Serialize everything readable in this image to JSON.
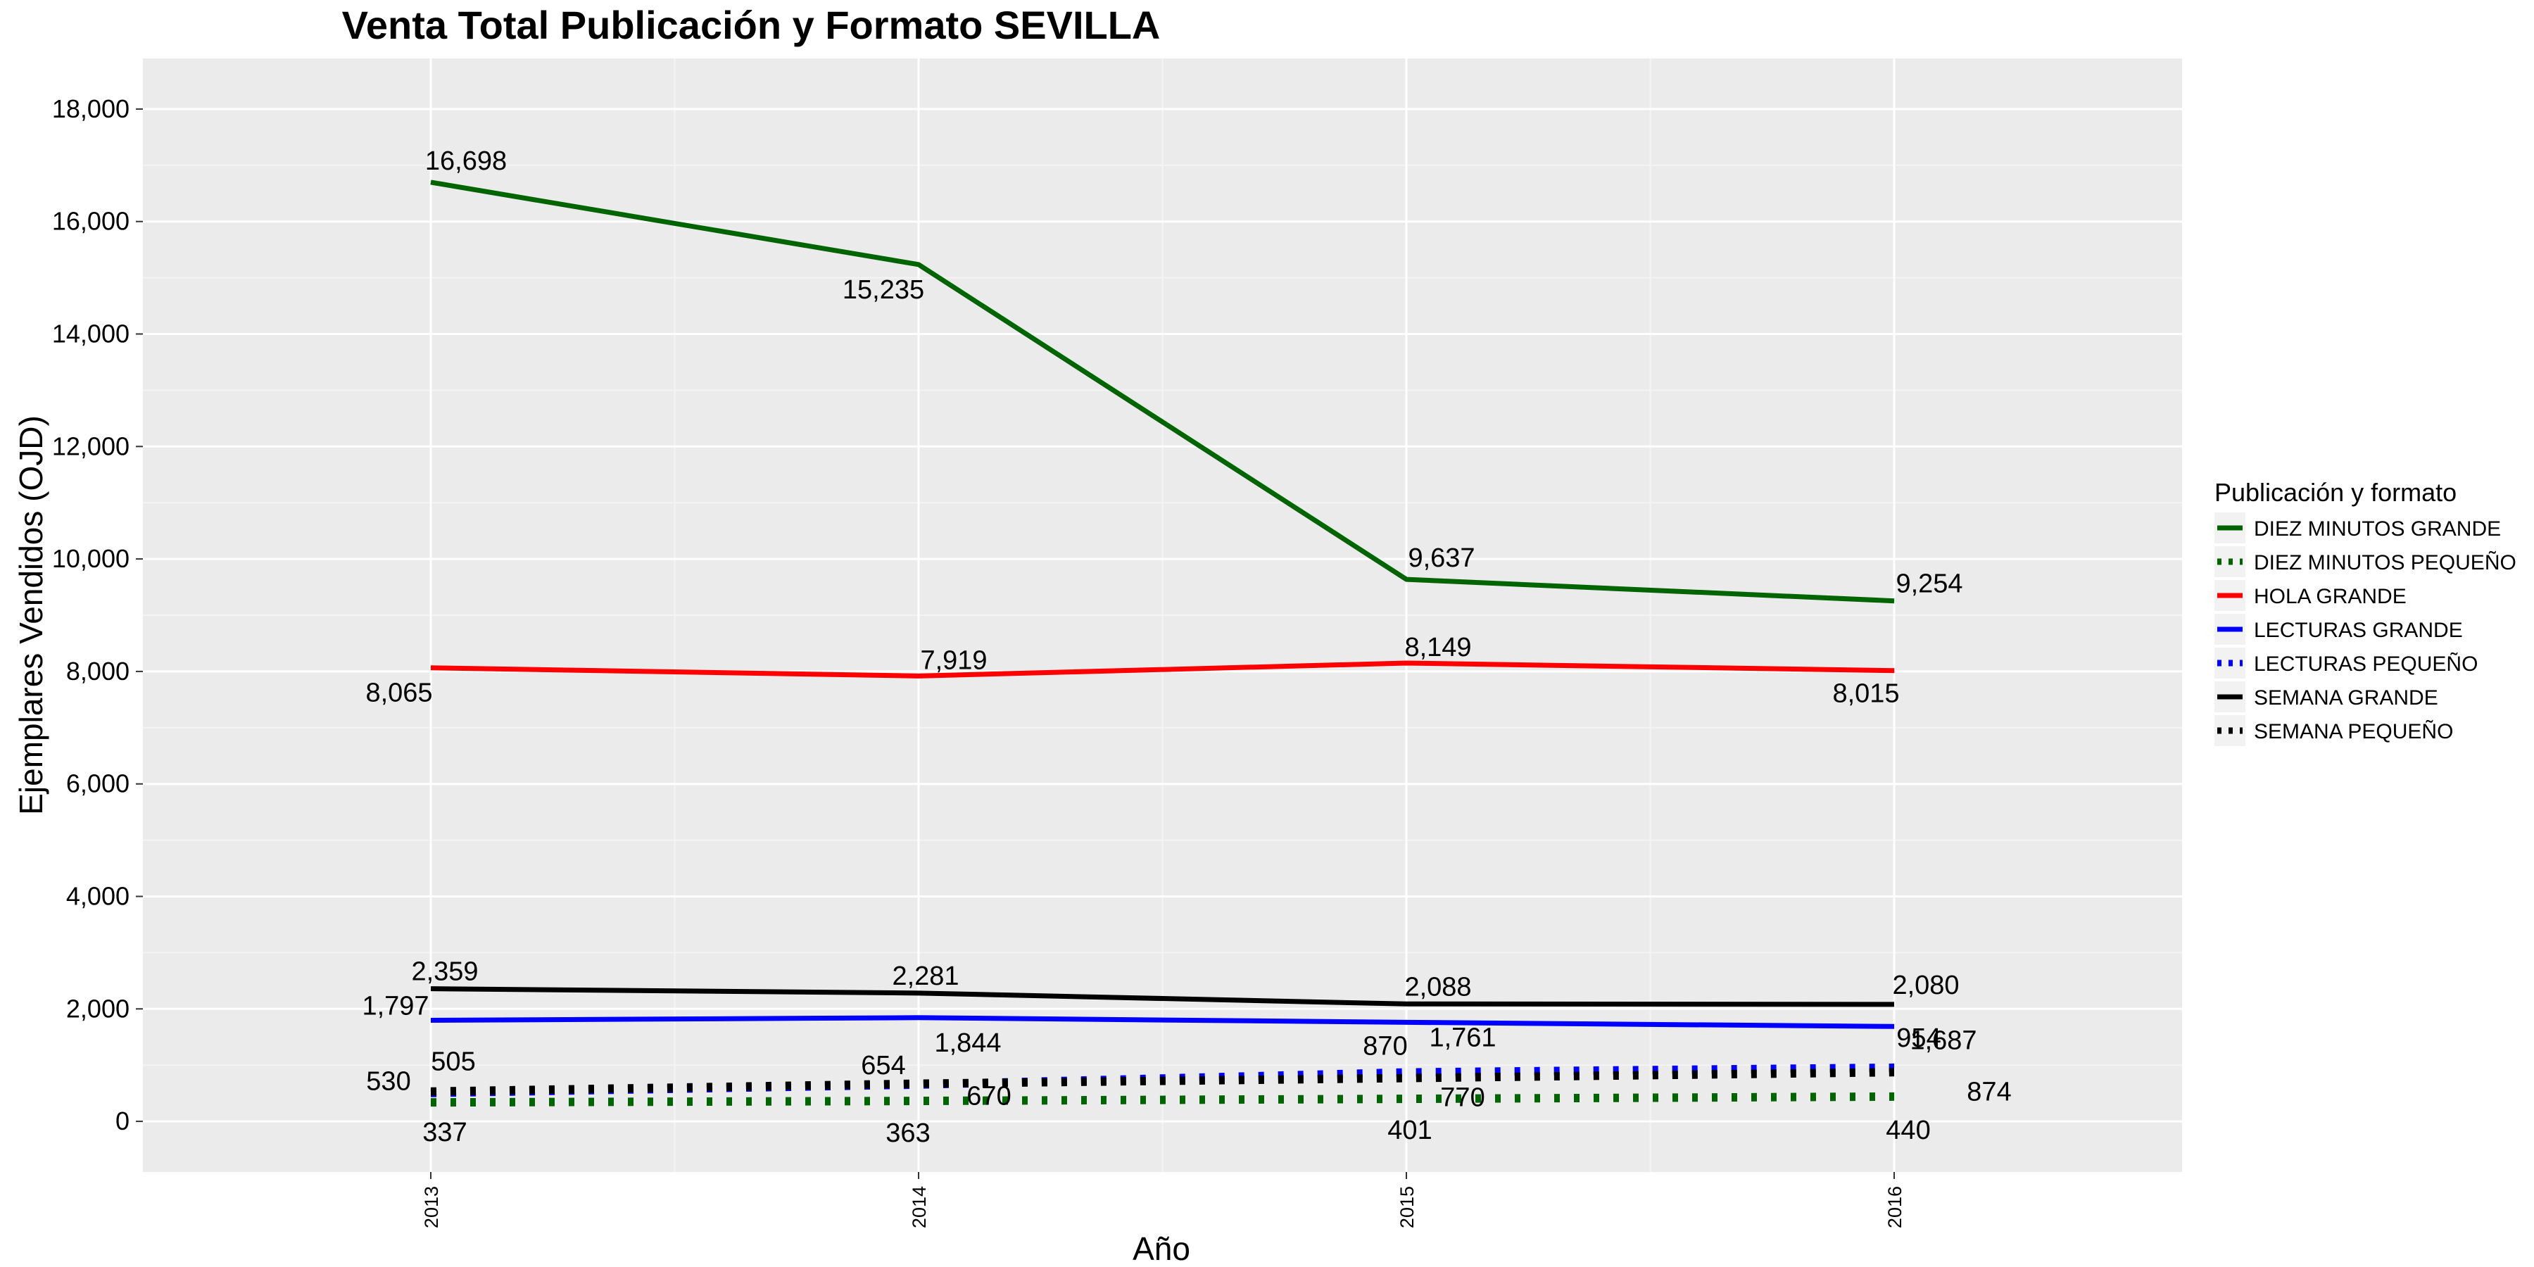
{
  "chart_data": {
    "type": "line",
    "title": "Venta Total Publicación y Formato  SEVILLA",
    "xlabel": "Año",
    "ylabel": "Ejemplares Vendidos (OJD)",
    "categories": [
      "2013",
      "2014",
      "2015",
      "2016"
    ],
    "ylim": [
      -900,
      18900
    ],
    "yticks": [
      0,
      2000,
      4000,
      6000,
      8000,
      10000,
      12000,
      14000,
      16000,
      18000
    ],
    "ytick_labels": [
      "0",
      "2,000",
      "4,000",
      "6,000",
      "8,000",
      "10,000",
      "12,000",
      "14,000",
      "16,000",
      "18,000"
    ],
    "grid": true,
    "legend": {
      "title": "Publicación y formato",
      "placement": "right"
    },
    "series": [
      {
        "name": "DIEZ MINUTOS GRANDE",
        "color": "#006400",
        "dash": "solid",
        "values": [
          16698,
          15235,
          9637,
          9254
        ],
        "labels": [
          "16,698",
          "15,235",
          "9,637",
          "9,254"
        ]
      },
      {
        "name": "DIEZ MINUTOS PEQUEÑO",
        "color": "#006400",
        "dash": "dotted",
        "values": [
          337,
          363,
          401,
          440
        ],
        "labels": [
          "337",
          "363",
          "401",
          "440"
        ]
      },
      {
        "name": "HOLA GRANDE",
        "color": "#ff0000",
        "dash": "solid",
        "values": [
          8065,
          7919,
          8149,
          8015
        ],
        "labels": [
          "8,065",
          "7,919",
          "8,149",
          "8,015"
        ]
      },
      {
        "name": "LECTURAS GRANDE",
        "color": "#0000ff",
        "dash": "solid",
        "values": [
          1797,
          1844,
          1761,
          1687
        ],
        "labels": [
          "1,797",
          "1,844",
          "1,761",
          "1,687"
        ]
      },
      {
        "name": "LECTURAS PEQUEÑO",
        "color": "#0000ff",
        "dash": "dotted",
        "values": [
          505,
          654,
          870,
          954
        ],
        "labels": [
          "505",
          "654",
          "870",
          "954"
        ]
      },
      {
        "name": "SEMANA GRANDE",
        "color": "#000000",
        "dash": "solid",
        "values": [
          2359,
          2281,
          2088,
          2080
        ],
        "labels": [
          "2,359",
          "2,281",
          "2,088",
          "2,080"
        ]
      },
      {
        "name": "SEMANA PEQUEÑO",
        "color": "#000000",
        "dash": "dotted",
        "values": [
          530,
          670,
          770,
          874
        ],
        "labels": [
          "530",
          "670",
          "770",
          "874"
        ]
      }
    ]
  }
}
